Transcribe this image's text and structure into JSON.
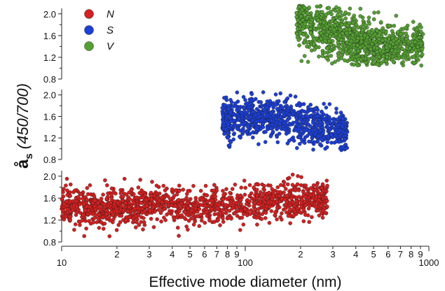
{
  "chart_data": {
    "type": "scatter",
    "title": "",
    "xlabel": "Effective mode diameter (nm)",
    "ylabel": {
      "symbol": "å",
      "subscript": "s",
      "suffix": "(450/700)"
    },
    "x_scale": "log",
    "xlim": [
      10,
      1000
    ],
    "x_major_tick_labels": [
      "10",
      "100",
      "1000"
    ],
    "x_minor_tick_labels": [
      "2",
      "3",
      "4",
      "5",
      "6",
      "7",
      "8",
      "9"
    ],
    "ylim": [
      0.8,
      2.1
    ],
    "y_tick_labels": [
      "0.8",
      "1.2",
      "1.6",
      "2.0"
    ],
    "panels": [
      "V",
      "S",
      "N"
    ],
    "legend": {
      "position": "top-left",
      "entries": [
        "N",
        "S",
        "V"
      ]
    },
    "grid": false,
    "series": [
      {
        "name": "N",
        "panel": "bottom",
        "color": "#d42020",
        "cluster_centers": [
          {
            "x": 60,
            "y": 1.45
          },
          {
            "x": 30,
            "y": 1.5
          },
          {
            "x": 130,
            "y": 1.5
          },
          {
            "x": 20,
            "y": 1.4
          },
          {
            "x": 220,
            "y": 1.6
          },
          {
            "x": 13,
            "y": 1.45
          }
        ],
        "x_range": [
          10,
          280
        ],
        "y_range": [
          0.9,
          2.1
        ]
      },
      {
        "name": "S",
        "panel": "middle",
        "color": "#1c3fd6",
        "cluster_centers": [
          {
            "x": 150,
            "y": 1.65
          },
          {
            "x": 230,
            "y": 1.4
          },
          {
            "x": 300,
            "y": 1.35
          },
          {
            "x": 110,
            "y": 1.6
          },
          {
            "x": 85,
            "y": 1.5
          }
        ],
        "x_range": [
          75,
          360
        ],
        "y_range": [
          0.95,
          2.1
        ]
      },
      {
        "name": "V",
        "panel": "top",
        "color": "#55a032",
        "cluster_centers": [
          {
            "x": 220,
            "y": 1.9
          },
          {
            "x": 290,
            "y": 1.7
          },
          {
            "x": 380,
            "y": 1.5
          },
          {
            "x": 460,
            "y": 1.3
          },
          {
            "x": 560,
            "y": 1.45
          },
          {
            "x": 750,
            "y": 1.4
          }
        ],
        "x_range": [
          190,
          930
        ],
        "y_range": [
          1.05,
          2.15
        ]
      }
    ]
  }
}
